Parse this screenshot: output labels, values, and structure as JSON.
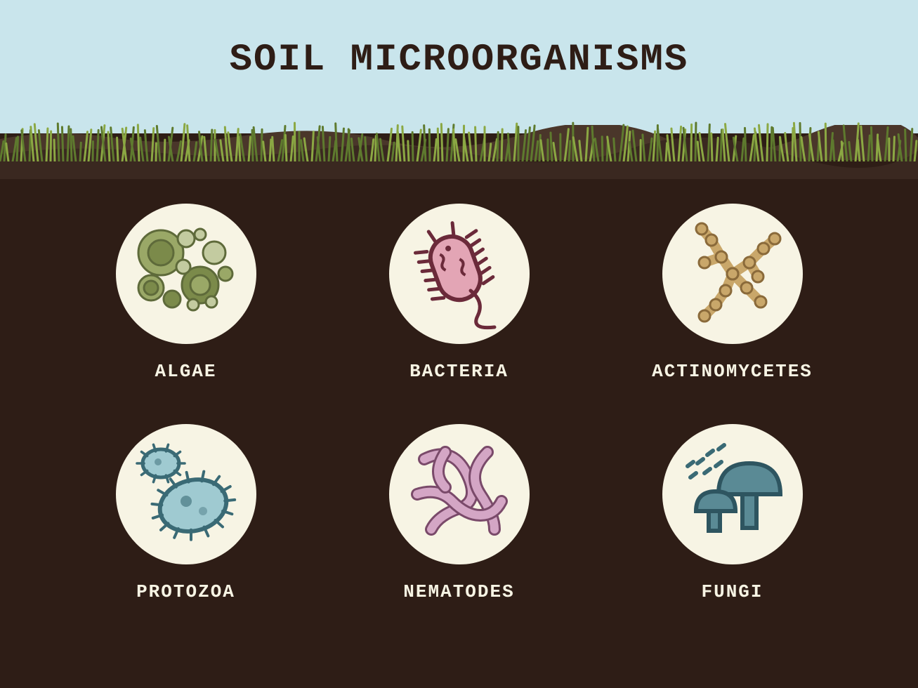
{
  "title": "SOIL MICROORGANISMS",
  "colors": {
    "sky": "#c9e5ec",
    "soil": "#2e1d16",
    "soil_layer_1": "#4a362a",
    "soil_layer_2": "#3a2820",
    "grass_light": "#8ba843",
    "grass_dark": "#5e7a2e",
    "circle_bg": "#f7f4e4",
    "title_color": "#2e1d16",
    "label_color": "#f7f4e4"
  },
  "typography": {
    "title_fontsize": 54,
    "label_fontsize": 26
  },
  "layout": {
    "circle_diameter": 200,
    "columns": 3,
    "rows": 2
  },
  "organisms": [
    {
      "id": "algae",
      "label": "ALGAE",
      "icon": "algae"
    },
    {
      "id": "bacteria",
      "label": "BACTERIA",
      "icon": "bacteria"
    },
    {
      "id": "actinomycetes",
      "label": "ACTINOMYCETES",
      "icon": "actinomycetes"
    },
    {
      "id": "protozoa",
      "label": "PROTOZOA",
      "icon": "protozoa"
    },
    {
      "id": "nematodes",
      "label": "NEMATODES",
      "icon": "nematodes"
    },
    {
      "id": "fungi",
      "label": "FUNGI",
      "icon": "fungi"
    }
  ],
  "icon_colors": {
    "algae": {
      "fill1": "#9aa867",
      "fill2": "#7b8a4a",
      "fill3": "#c3cba0",
      "stroke": "#5e6a3a"
    },
    "bacteria": {
      "fill": "#e3a5b5",
      "stroke": "#6b2a3a",
      "flagella": "#6b2a3a"
    },
    "actinomycetes": {
      "fill": "#c9a76a",
      "stroke": "#8a6a3a"
    },
    "protozoa": {
      "fill": "#9fcad1",
      "stroke": "#3a6a75"
    },
    "nematodes": {
      "fill": "#d4a6c5",
      "stroke": "#7a4a6a"
    },
    "fungi": {
      "fill": "#5a8a95",
      "stroke": "#2e5560",
      "spore": "#3a6a75"
    }
  }
}
